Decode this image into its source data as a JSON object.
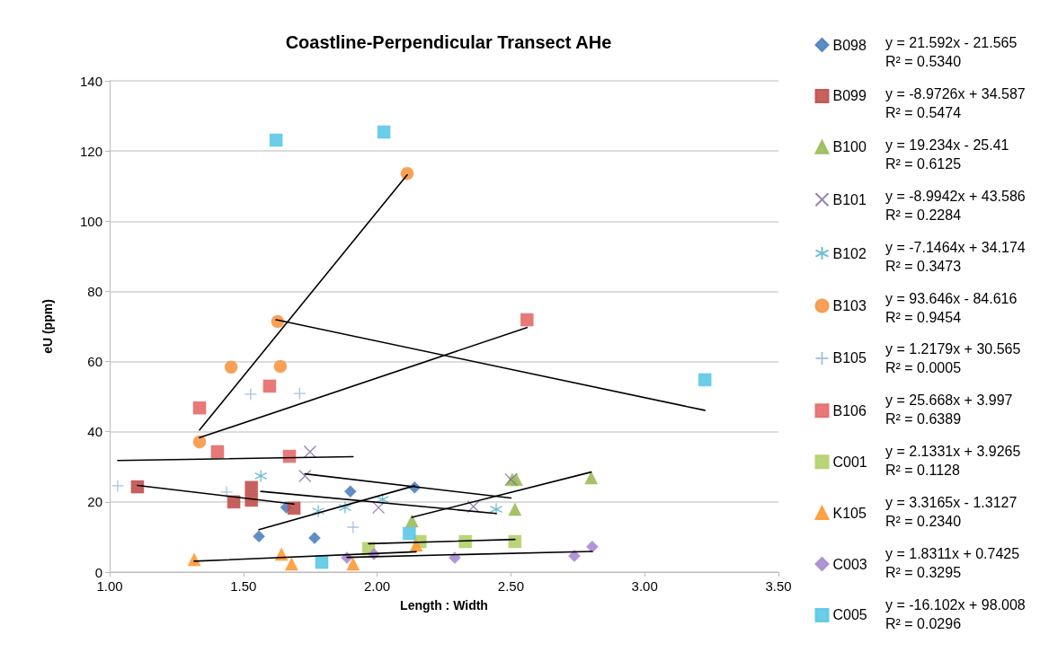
{
  "chart_data": {
    "type": "scatter",
    "title": "Coastline-Perpendicular Transect AHe",
    "xlabel": "Length : Width",
    "ylabel": "eU (ppm)",
    "xlim": [
      1,
      3.5
    ],
    "xticks": [
      {
        "value": 1,
        "label": "1.00"
      },
      {
        "value": 1.5,
        "label": "1.50"
      },
      {
        "value": 2,
        "label": "2.00"
      },
      {
        "value": 2.5,
        "label": "2.50"
      },
      {
        "value": 3,
        "label": "3.00"
      },
      {
        "value": 3.5,
        "label": "3.50"
      }
    ],
    "ylim": [
      0,
      140
    ],
    "yticks": [
      0,
      20,
      40,
      60,
      80,
      100,
      120,
      140
    ],
    "grid": "y",
    "legend": "right",
    "annotations": [
      "y = 21.592x - 21.565\nR² = 0.5340",
      "y = -8.9726x + 34.587\nR² = 0.5474",
      "y = 19.234x - 25.41\nR² = 0.6125",
      "y = -8.9942x + 43.586\nR² = 0.2284",
      "y = -7.1464x + 34.174\nR² = 0.3473",
      "y = 93.646x - 84.616\nR² = 0.9454",
      "y = 1.2179x + 30.565\nR² = 0.0005",
      "y = 25.668x + 3.997\nR² = 0.6389",
      "y = 2.1331x + 3.9265\nR² = 0.1128",
      "y = 3.3165x - 1.3127\nR² = 0.2340",
      "y = 1.8311x + 0.7425\nR² = 0.3295",
      "y = -16.102x + 98.008\nR² = 0.0296"
    ],
    "series": [
      {
        "name": "B098",
        "color": "#4f81bd",
        "marker": "diamond",
        "x": [
          1.558,
          1.766,
          1.66,
          1.9,
          2.14
        ],
        "values": [
          10.2,
          9.7,
          18.4,
          23.0,
          24.1
        ]
      },
      {
        "name": "B099",
        "color": "#c0504d",
        "marker": "square",
        "x": [
          1.104,
          1.464,
          1.53,
          1.53,
          1.689
        ],
        "values": [
          24.3,
          20.0,
          24.1,
          20.5,
          18.2
        ]
      },
      {
        "name": "B100",
        "color": "#9bbb59",
        "marker": "triangle",
        "x": [
          2.13,
          2.505,
          2.52,
          2.515,
          2.8
        ],
        "values": [
          14.6,
          26.4,
          26.4,
          17.9,
          26.9
        ]
      },
      {
        "name": "B101",
        "color": "#8064a2",
        "marker": "x",
        "x": [
          1.749,
          1.73,
          2.005,
          2.36,
          2.5
        ],
        "values": [
          34.3,
          27.4,
          18.4,
          18.7,
          26.4
        ]
      },
      {
        "name": "B102",
        "color": "#4bacc6",
        "marker": "cross",
        "x": [
          1.565,
          1.78,
          1.88,
          2.02,
          2.445
        ],
        "values": [
          27.4,
          17.4,
          18.4,
          20.7,
          17.9
        ]
      },
      {
        "name": "B103",
        "color": "#f79646",
        "marker": "circle",
        "x": [
          1.336,
          1.454,
          1.638,
          1.628,
          2.112
        ],
        "values": [
          37.1,
          58.4,
          58.6,
          71.4,
          113.6
        ]
      },
      {
        "name": "B105",
        "color": "#95b3d7",
        "marker": "plus",
        "x": [
          1.03,
          1.527,
          1.71,
          1.437,
          1.91
        ],
        "values": [
          24.6,
          50.7,
          50.9,
          22.8,
          12.8
        ]
      },
      {
        "name": "B106",
        "color": "#e46c6a",
        "marker": "square",
        "x": [
          1.336,
          1.598,
          1.403,
          1.672,
          2.56
        ],
        "values": [
          46.8,
          53.0,
          34.3,
          33.0,
          71.9
        ]
      },
      {
        "name": "C001",
        "color": "#b3d06a",
        "marker": "square",
        "x": [
          1.968,
          2.16,
          2.33,
          2.515
        ],
        "values": [
          6.7,
          8.7,
          8.7,
          8.7
        ]
      },
      {
        "name": "K105",
        "color": "#ff9933",
        "marker": "triangle",
        "x": [
          1.316,
          1.642,
          1.68,
          1.91,
          2.146
        ],
        "values": [
          3.6,
          5.1,
          2.3,
          2.3,
          7.7
        ]
      },
      {
        "name": "C003",
        "color": "#a88bd0",
        "marker": "diamond",
        "x": [
          1.887,
          1.988,
          2.29,
          2.737,
          2.804
        ],
        "values": [
          4.1,
          5.1,
          4.1,
          4.6,
          7.2
        ]
      },
      {
        "name": "C005",
        "color": "#5bc8e6",
        "marker": "square",
        "x": [
          1.622,
          2.025,
          1.793,
          2.12,
          3.225
        ],
        "values": [
          123.1,
          125.4,
          2.8,
          11.0,
          54.8
        ]
      },
      {
        "type": "line",
        "color": "#000000",
        "marker": "none",
        "x": [
          1.558,
          2.14
        ],
        "values": [
          12.1,
          24.6
        ]
      },
      {
        "type": "line",
        "color": "#000000",
        "marker": "none",
        "x": [
          1.104,
          1.689
        ],
        "values": [
          24.7,
          19.4
        ]
      },
      {
        "type": "line",
        "color": "#000000",
        "marker": "none",
        "x": [
          2.13,
          2.8
        ],
        "values": [
          15.6,
          28.5
        ]
      },
      {
        "type": "line",
        "color": "#000000",
        "marker": "none",
        "x": [
          1.73,
          2.5
        ],
        "values": [
          28.0,
          21.1
        ]
      },
      {
        "type": "line",
        "color": "#000000",
        "marker": "none",
        "x": [
          1.565,
          2.445
        ],
        "values": [
          23.0,
          16.7
        ]
      },
      {
        "type": "line",
        "color": "#000000",
        "marker": "none",
        "x": [
          1.336,
          2.112
        ],
        "values": [
          40.5,
          113.2
        ]
      },
      {
        "type": "line",
        "color": "#000000",
        "marker": "none",
        "x": [
          1.03,
          1.91
        ],
        "values": [
          31.8,
          32.9
        ]
      },
      {
        "type": "line",
        "color": "#000000",
        "marker": "none",
        "x": [
          1.336,
          2.56
        ],
        "values": [
          38.3,
          69.7
        ]
      },
      {
        "type": "line",
        "color": "#000000",
        "marker": "none",
        "x": [
          1.968,
          2.515
        ],
        "values": [
          8.1,
          9.3
        ]
      },
      {
        "type": "line",
        "color": "#000000",
        "marker": "none",
        "x": [
          1.316,
          2.146
        ],
        "values": [
          3.1,
          5.8
        ]
      },
      {
        "type": "line",
        "color": "#000000",
        "marker": "none",
        "x": [
          1.887,
          2.804
        ],
        "values": [
          4.2,
          5.9
        ]
      },
      {
        "type": "line",
        "color": "#000000",
        "marker": "none",
        "x": [
          1.622,
          3.225
        ],
        "values": [
          71.9,
          46.1
        ]
      }
    ]
  }
}
